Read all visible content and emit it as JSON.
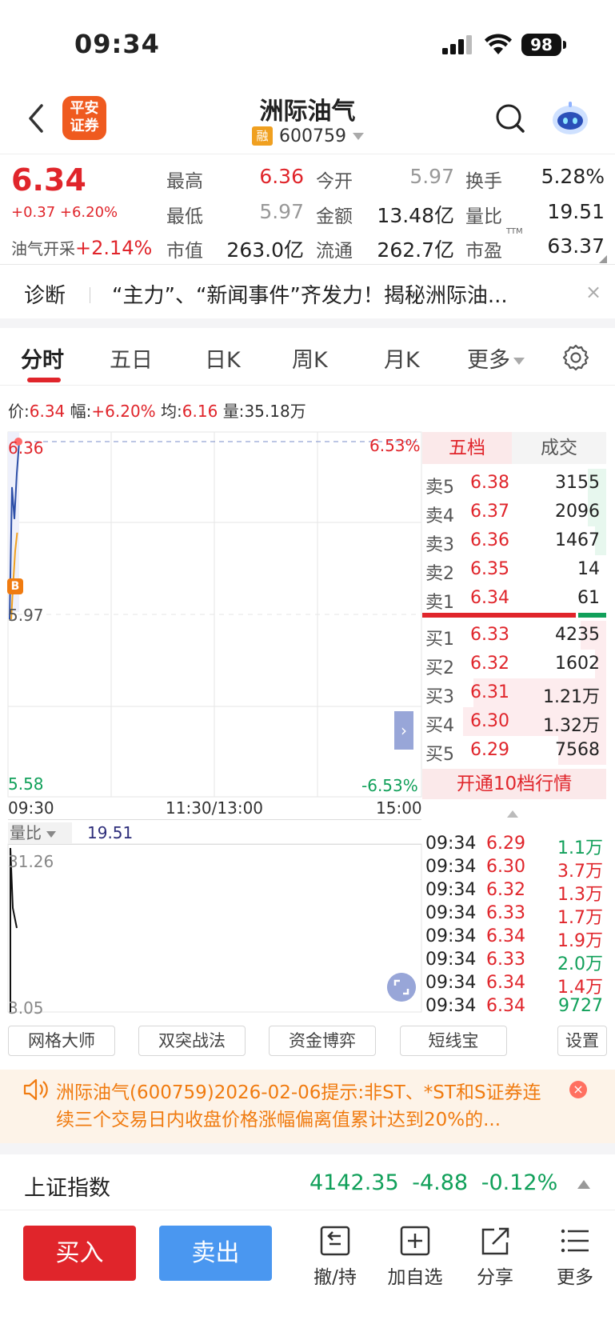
{
  "status_bar": {
    "time": "09:34",
    "battery": "98"
  },
  "header": {
    "logo_line1": "平安",
    "logo_line2": "证券",
    "stock_name": "洲际油气",
    "badge": "融",
    "code": "600759"
  },
  "quote": {
    "price": "6.34",
    "change": "+0.37 +6.20%",
    "sector_name": "油气开采",
    "sector_change": "+2.14%",
    "fields": [
      {
        "label": "最高",
        "value": "6.36"
      },
      {
        "label": "今开",
        "value": "5.97"
      },
      {
        "label": "换手",
        "value": "5.28%"
      },
      {
        "label": "最低",
        "value": "5.97"
      },
      {
        "label": "金额",
        "value": "13.48亿"
      },
      {
        "label": "量比",
        "value": "19.51"
      },
      {
        "label": "市值",
        "value": "263.0亿"
      },
      {
        "label": "流通",
        "value": "262.7亿"
      },
      {
        "label": "市盈",
        "value": "63.37"
      }
    ],
    "ttm": "TTM"
  },
  "diagnosis": {
    "label": "诊断",
    "text": "“主力”、“新闻事件”齐发力！揭秘洲际油...",
    "close": "×"
  },
  "tabs": [
    "分时",
    "五日",
    "日K",
    "周K",
    "月K",
    "更多"
  ],
  "info_line": {
    "price_label": "价:",
    "price": "6.34",
    "amp_label": "幅:",
    "amp": "+6.20%",
    "avg_label": "均:",
    "avg": "6.16",
    "vol_label": "量:",
    "vol": "35.18万"
  },
  "chart": {
    "y_high": "6.36",
    "y_mid": "5.97",
    "y_low": "5.58",
    "pct_high": "6.53%",
    "pct_low": "-6.53%",
    "marker": "B",
    "time_start": "09:30",
    "time_mid": "11:30/13:00",
    "time_end": "15:00",
    "vol_ratio_label": "量比",
    "vol_ratio_value": "19.51",
    "sub_high": "31.26",
    "sub_low": "3.05",
    "price_series": [
      5.97,
      6.26,
      6.19,
      6.29,
      6.36
    ],
    "avg_series": [
      5.97,
      6.05,
      6.12,
      6.16
    ],
    "ylim": [
      5.58,
      6.36
    ]
  },
  "order_book": {
    "tab_active": "五档",
    "tab_other": "成交",
    "asks": [
      {
        "label": "卖5",
        "price": "6.38",
        "vol": "3155",
        "bar": 0.1
      },
      {
        "label": "卖4",
        "price": "6.37",
        "vol": "2096",
        "bar": 0.1
      },
      {
        "label": "卖3",
        "price": "6.36",
        "vol": "1467",
        "bar": 0.06
      },
      {
        "label": "卖2",
        "price": "6.35",
        "vol": "14",
        "bar": 0.0
      },
      {
        "label": "卖1",
        "price": "6.34",
        "vol": "61",
        "bar": 0.0
      }
    ],
    "bids": [
      {
        "label": "买1",
        "price": "6.33",
        "vol": "4235",
        "bar": 0.14
      },
      {
        "label": "买2",
        "price": "6.32",
        "vol": "1602",
        "bar": 0.06
      },
      {
        "label": "买3",
        "price": "6.31",
        "vol": "1.21万",
        "bar": 0.72
      },
      {
        "label": "买4",
        "price": "6.30",
        "vol": "1.32万",
        "bar": 0.78
      },
      {
        "label": "买5",
        "price": "6.29",
        "vol": "7568",
        "bar": 0.26
      }
    ],
    "open10": "开通10档行情",
    "ticks": [
      {
        "time": "09:34",
        "price": "6.29",
        "vol": "1.1万",
        "dir": "green"
      },
      {
        "time": "09:34",
        "price": "6.30",
        "vol": "3.7万",
        "dir": "red"
      },
      {
        "time": "09:34",
        "price": "6.32",
        "vol": "1.3万",
        "dir": "red"
      },
      {
        "time": "09:34",
        "price": "6.33",
        "vol": "1.7万",
        "dir": "red"
      },
      {
        "time": "09:34",
        "price": "6.34",
        "vol": "1.9万",
        "dir": "red"
      },
      {
        "time": "09:34",
        "price": "6.33",
        "vol": "2.0万",
        "dir": "green"
      },
      {
        "time": "09:34",
        "price": "6.34",
        "vol": "1.4万",
        "dir": "red"
      },
      {
        "time": "09:34",
        "price": "6.34",
        "vol": "9727",
        "dir": "green"
      }
    ]
  },
  "tools": [
    "网格大师",
    "双突战法",
    "资金博弈",
    "短线宝",
    "设置"
  ],
  "notice": {
    "text": "洲际油气(600759)2026-02-06提示:非ST、*ST和S证券连续三个交易日内收盘价格涨幅偏离值累计达到20%的..."
  },
  "index": {
    "name": "上证指数",
    "value": "4142.35",
    "change": "-4.88",
    "pct": "-0.12%"
  },
  "bottom": {
    "buy": "买入",
    "sell": "卖出",
    "withdraw": "撤/持",
    "add_watch": "加自选",
    "share": "分享",
    "more": "更多"
  },
  "colors": {
    "up": "#e0252b",
    "down": "#11a05a",
    "sell_btn": "#4a97f0"
  }
}
